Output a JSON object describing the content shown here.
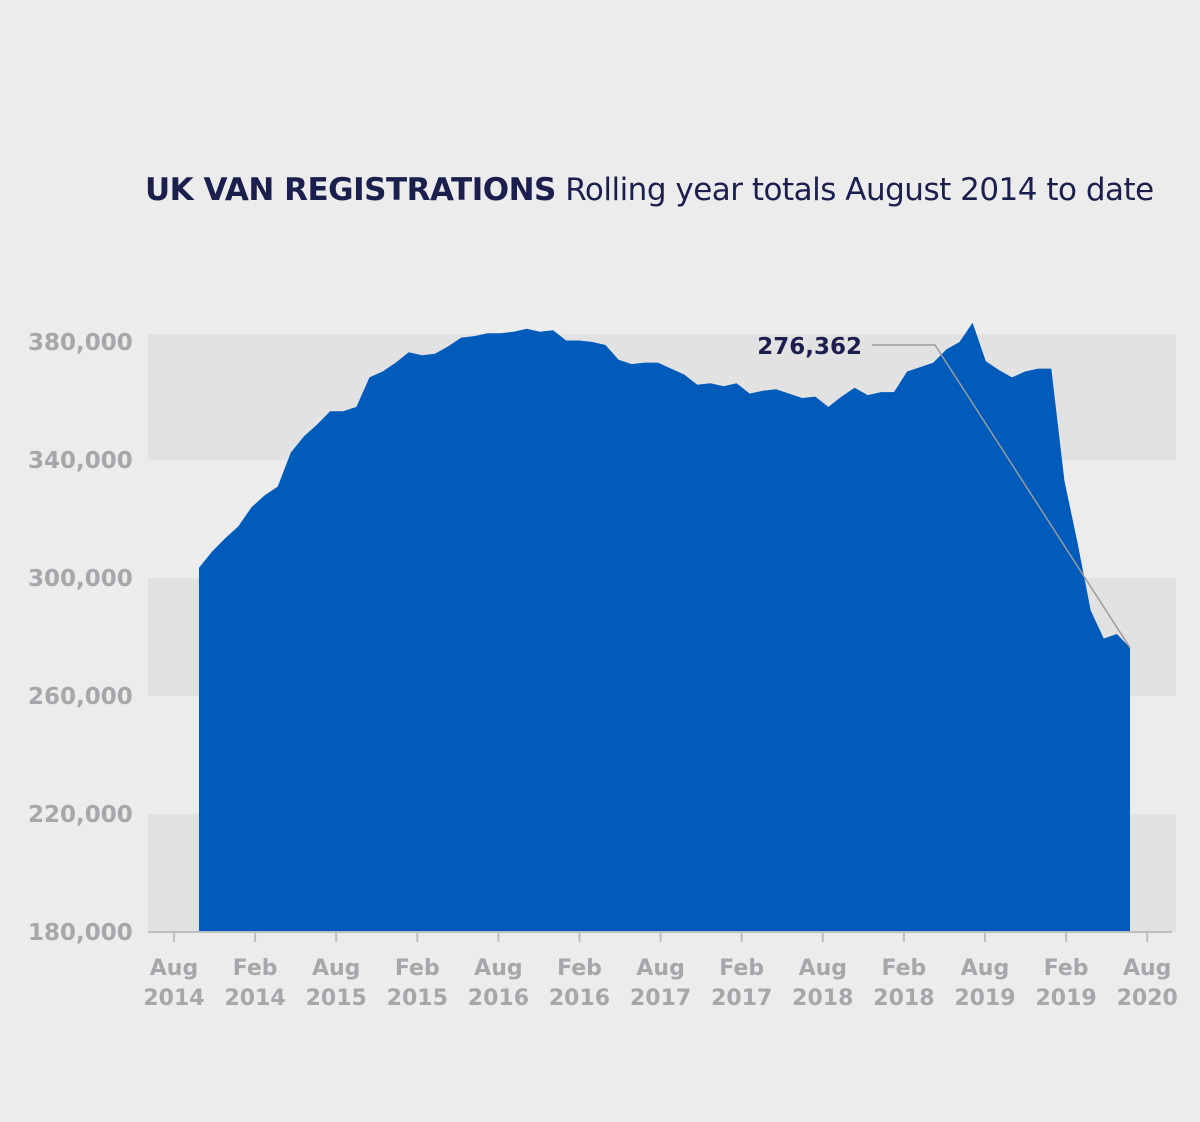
{
  "title": {
    "bold": "UK VAN REGISTRATIONS",
    "light": "Rolling year totals August 2014 to date"
  },
  "chart_data": {
    "type": "area",
    "title": "UK VAN REGISTRATIONS Rolling year totals August 2014 to date",
    "ylim": [
      180000,
      380000
    ],
    "y_ticks": [
      180000,
      220000,
      260000,
      300000,
      340000,
      380000
    ],
    "y_tick_labels": [
      "180,000",
      "220,000",
      "260,000",
      "300,000",
      "340,000",
      "380,000"
    ],
    "x_tick_labels": [
      [
        "Aug",
        "2014"
      ],
      [
        "Feb",
        "2014"
      ],
      [
        "Aug",
        "2015"
      ],
      [
        "Feb",
        "2015"
      ],
      [
        "Aug",
        "2016"
      ],
      [
        "Feb",
        "2016"
      ],
      [
        "Aug",
        "2017"
      ],
      [
        "Feb",
        "2017"
      ],
      [
        "Aug",
        "2018"
      ],
      [
        "Feb",
        "2018"
      ],
      [
        "Aug",
        "2019"
      ],
      [
        "Feb",
        "2019"
      ],
      [
        "Aug",
        "2020"
      ]
    ],
    "series": [
      {
        "values": [
          303500,
          309000,
          313500,
          317500,
          324000,
          328000,
          331000,
          342500,
          348000,
          352000,
          356500,
          356500,
          358000,
          368000,
          370000,
          373000,
          376500,
          375500,
          376000,
          378500,
          381500,
          382000,
          383000,
          383000,
          383500,
          384500,
          383500,
          384000,
          380500,
          380500,
          380000,
          379000,
          374000,
          372500,
          373000,
          373000,
          371000,
          369000,
          365500,
          366000,
          365000,
          366000,
          362500,
          363500,
          364000,
          362500,
          361000,
          361500,
          358000,
          361500,
          364500,
          362000,
          363000,
          363000,
          370000,
          371500,
          373000,
          377500,
          380000,
          386500,
          373500,
          370500,
          368000,
          370000,
          371000,
          371000,
          333000,
          312000,
          289000,
          279500,
          281000,
          276362
        ]
      }
    ],
    "annotations": [
      {
        "label": "276,362",
        "value": 276362
      }
    ],
    "colors": {
      "area": "#005bbb",
      "band": "#e2e2e3",
      "background": "#ececec",
      "tick_text": "#a7a7ab",
      "title": "#1b1f4d",
      "leader_line": "#9a9aa0"
    }
  }
}
